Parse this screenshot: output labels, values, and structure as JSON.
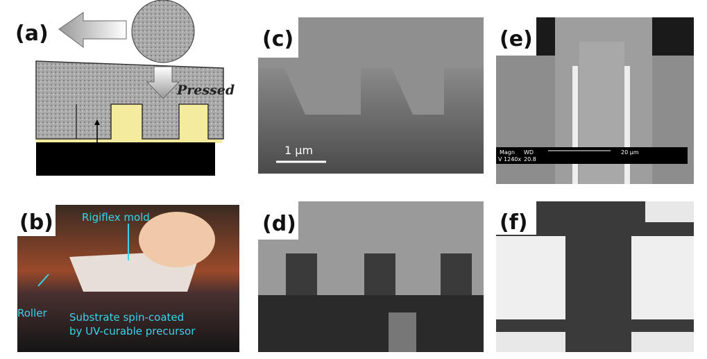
{
  "panels": [
    {
      "label": "(a)",
      "annotations": [
        "Pressed"
      ]
    },
    {
      "label": "(b)",
      "annotations": [
        "Rigiflex mold",
        "Roller",
        "Substrate spin-coated",
        "by UV-curable precursor"
      ]
    },
    {
      "label": "(c)",
      "annotations": [
        "1 μm"
      ]
    },
    {
      "label": "(d)"
    },
    {
      "label": "(e)",
      "annotations": [
        "Magn",
        "WD",
        "20 μm",
        "V 1240x",
        "20.8"
      ]
    },
    {
      "label": "(f)"
    }
  ]
}
